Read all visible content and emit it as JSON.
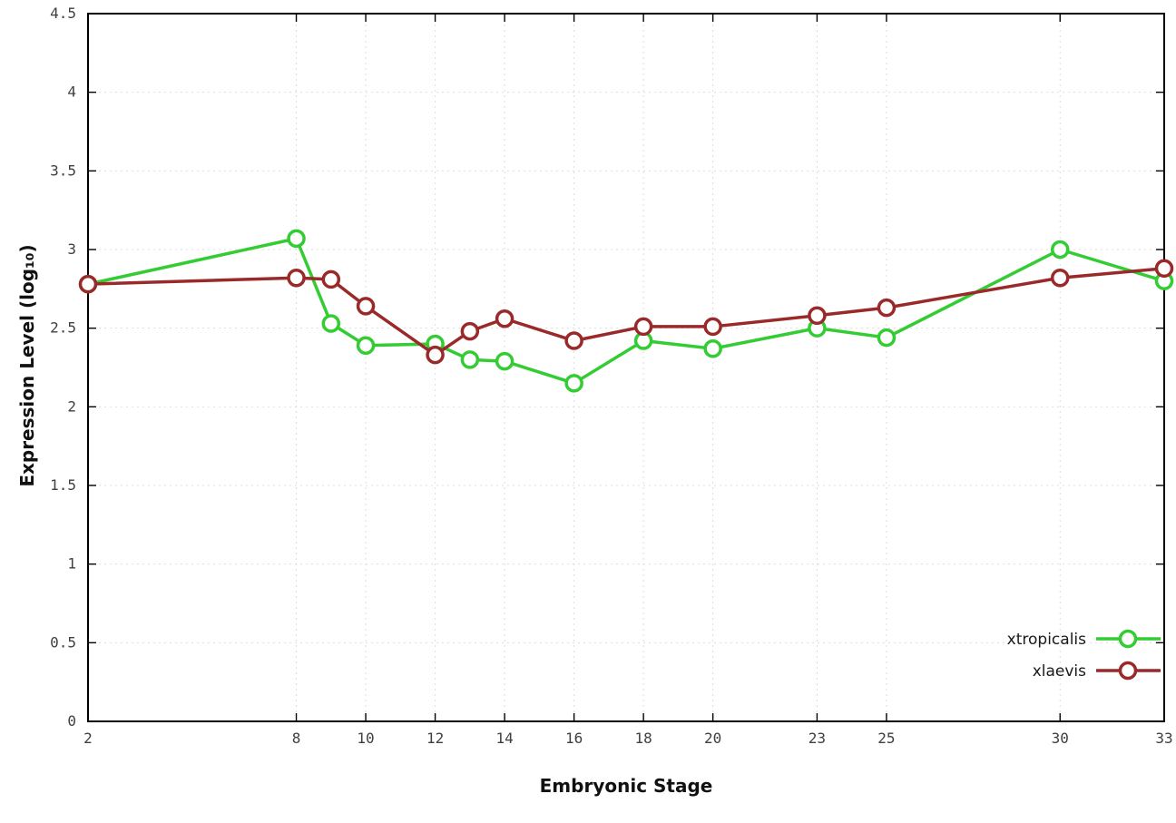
{
  "chart_data": {
    "type": "line",
    "title": "",
    "xlabel": "Embryonic Stage",
    "ylabel": "Expression Level (log₁₀)",
    "xlim": [
      2,
      33
    ],
    "ylim": [
      0,
      4.5
    ],
    "xticks": [
      2,
      8,
      10,
      12,
      14,
      16,
      18,
      20,
      23,
      25,
      30,
      33
    ],
    "yticks": [
      0,
      0.5,
      1,
      1.5,
      2,
      2.5,
      3,
      3.5,
      4,
      4.5
    ],
    "grid": true,
    "legend_position": "bottom-right",
    "x": [
      2,
      8,
      9,
      10,
      12,
      13,
      14,
      16,
      18,
      20,
      23,
      25,
      30,
      33
    ],
    "series": [
      {
        "name": "xtropicalis",
        "color": "#33cc33",
        "values": [
          2.78,
          3.07,
          2.53,
          2.39,
          2.4,
          2.3,
          2.29,
          2.15,
          2.42,
          2.37,
          2.5,
          2.44,
          3.0,
          2.8
        ]
      },
      {
        "name": "xlaevis",
        "color": "#9a2a2a",
        "values": [
          2.78,
          2.82,
          2.81,
          2.64,
          2.33,
          2.48,
          2.56,
          2.42,
          2.51,
          2.51,
          2.58,
          2.63,
          2.82,
          2.88
        ]
      }
    ],
    "style": {
      "grid_color": "#dddddd",
      "border_color": "#000000",
      "tick_label_color": "#404040",
      "legend_text_color": "#1a1a1a"
    }
  }
}
